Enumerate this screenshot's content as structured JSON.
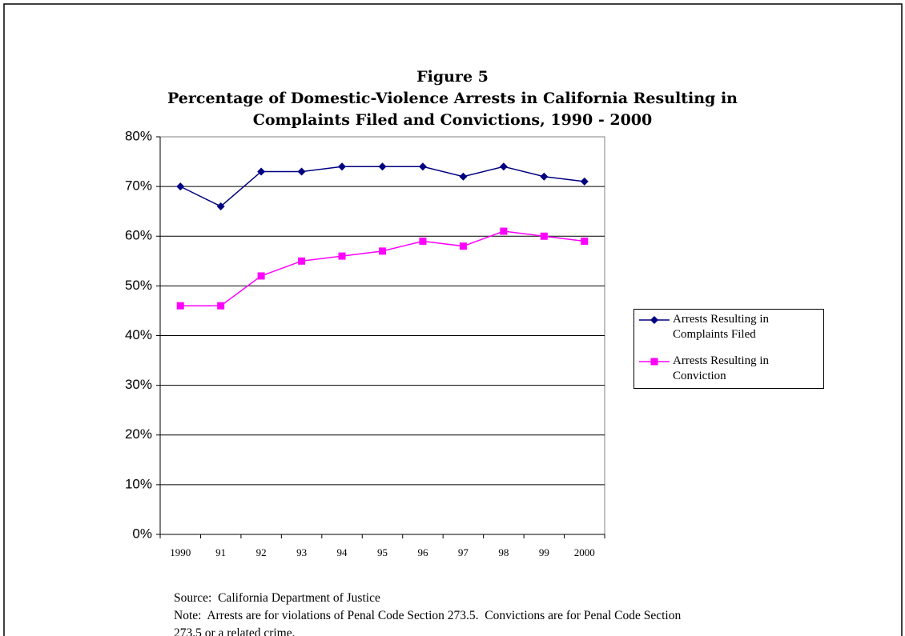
{
  "chart_data": {
    "type": "line",
    "figure_label": "Figure 5",
    "title": "Percentage of Domestic-Violence Arrests in California Resulting in Complaints Filed and Convictions, 1990 - 2000",
    "categories": [
      "1990",
      "91",
      "92",
      "93",
      "94",
      "95",
      "96",
      "97",
      "98",
      "99",
      "2000"
    ],
    "series": [
      {
        "name": "Arrests Resulting in Complaints Filed",
        "color": "#000080",
        "marker": "diamond",
        "values": [
          70,
          66,
          73,
          73,
          74,
          74,
          74,
          72,
          74,
          72,
          71
        ]
      },
      {
        "name": "Arrests Resulting in Conviction",
        "color": "#ff00ff",
        "marker": "square",
        "values": [
          46,
          46,
          52,
          55,
          56,
          57,
          59,
          58,
          61,
          60,
          59
        ]
      }
    ],
    "ylim": [
      0,
      80
    ],
    "yticks": [
      {
        "value": 0,
        "label": "0%"
      },
      {
        "value": 10,
        "label": "10%"
      },
      {
        "value": 20,
        "label": "20%"
      },
      {
        "value": 30,
        "label": "30%"
      },
      {
        "value": 40,
        "label": "40%"
      },
      {
        "value": 50,
        "label": "50%"
      },
      {
        "value": 60,
        "label": "60%"
      },
      {
        "value": 70,
        "label": "70%"
      },
      {
        "value": 80,
        "label": "80%"
      }
    ],
    "grid": true,
    "legend": "right",
    "source": "Source:  California Department of Justice",
    "note": "Note:  Arrests are for violations of Penal Code Section 273.5.  Convictions are for Penal Code Section 273.5 or a related crime."
  }
}
